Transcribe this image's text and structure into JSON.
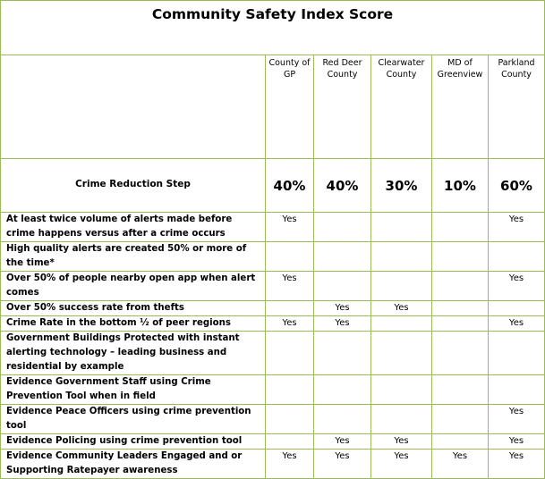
{
  "title": "Community Safety Index Score",
  "regions": [
    "County of GP",
    "Red Deer County",
    "Clearwater County",
    "MD of Greenview",
    "Parkland County"
  ],
  "step_header": "Crime Reduction Step",
  "percentages": [
    "40%",
    "40%",
    "30%",
    "10%",
    "60%"
  ],
  "rows": [
    {
      "label": "At least twice volume of alerts made before crime happens versus after a crime occurs",
      "cells": [
        "Yes",
        "",
        "",
        "",
        "Yes"
      ]
    },
    {
      "label": "High quality alerts are created 50% or more of the time*",
      "cells": [
        "",
        "",
        "",
        "",
        ""
      ]
    },
    {
      "label": "Over 50% of people nearby open app when alert comes",
      "cells": [
        "Yes",
        "",
        "",
        "",
        "Yes"
      ]
    },
    {
      "label": "Over 50% success rate from thefts",
      "cells": [
        "",
        "Yes",
        "Yes",
        "",
        ""
      ]
    },
    {
      "label": "Crime Rate in the bottom ½ of peer regions",
      "cells": [
        "Yes",
        "Yes",
        "",
        "",
        "Yes"
      ]
    },
    {
      "label": "Government Buildings Protected with instant alerting technology – leading business and residential by example",
      "cells": [
        "",
        "",
        "",
        "",
        ""
      ]
    },
    {
      "label": "Evidence Government Staff using Crime Prevention Tool when in field",
      "cells": [
        "",
        "",
        "",
        "",
        ""
      ]
    },
    {
      "label": "Evidence Peace Officers using crime prevention tool",
      "cells": [
        "",
        "",
        "",
        "",
        "Yes"
      ]
    },
    {
      "label": "Evidence Policing using crime prevention tool",
      "cells": [
        "",
        "Yes",
        "Yes",
        "",
        "Yes"
      ]
    },
    {
      "label": "Evidence Community Leaders Engaged and or Supporting Ratepayer awareness",
      "cells": [
        "Yes",
        "Yes",
        "Yes",
        "Yes",
        "Yes"
      ]
    }
  ]
}
